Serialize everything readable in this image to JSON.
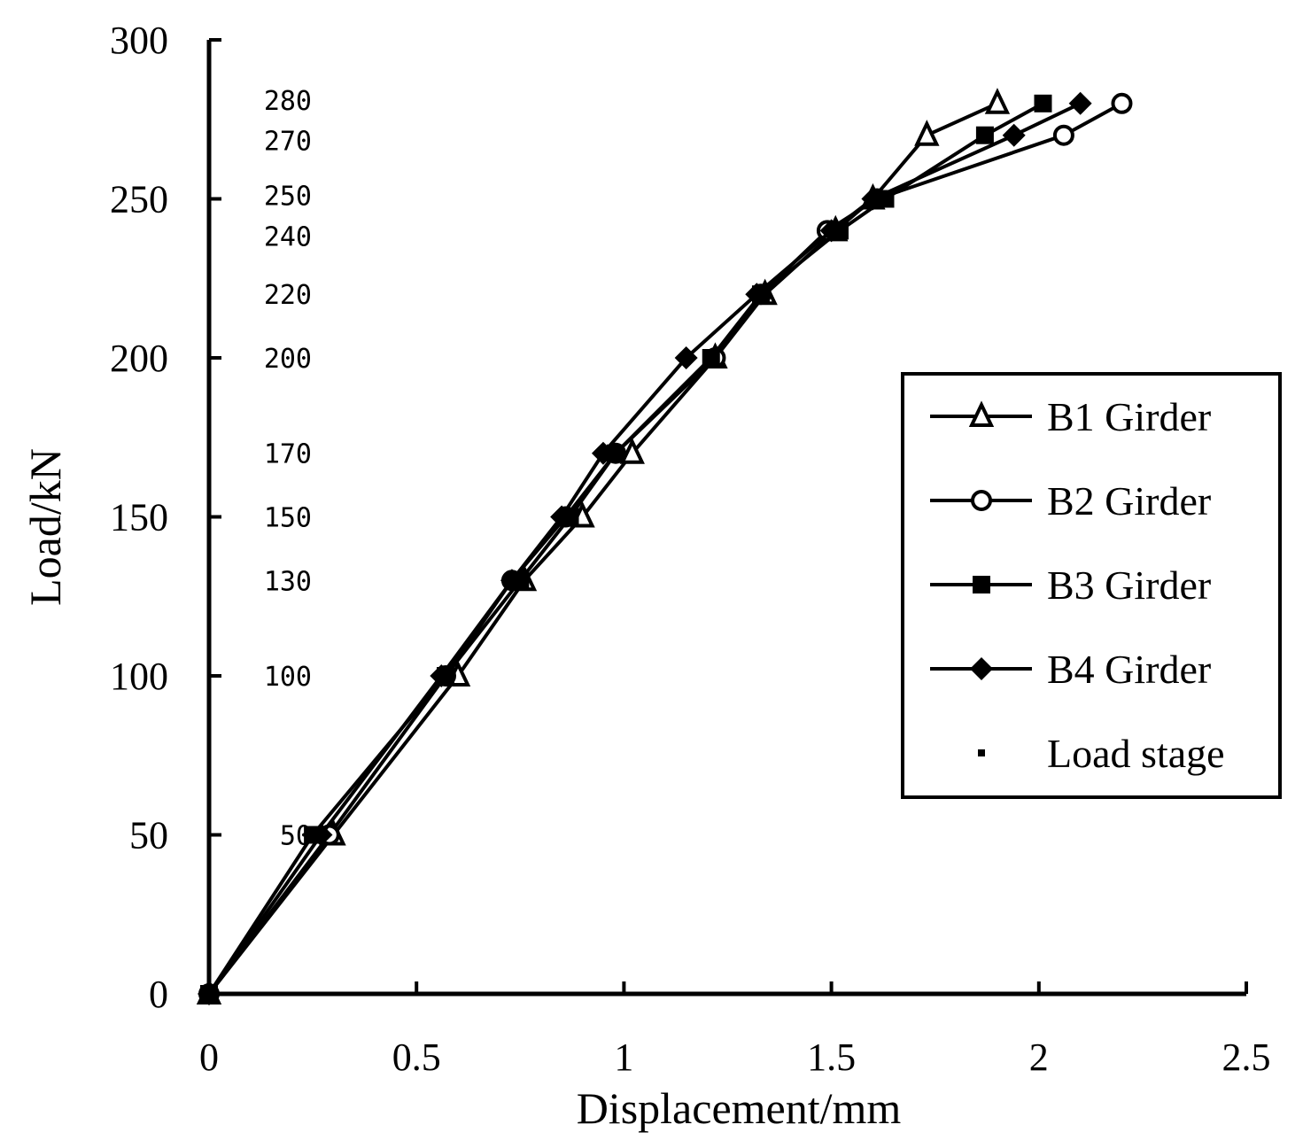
{
  "chart_data": {
    "type": "line",
    "xlabel": "Displacement/mm",
    "ylabel": "Load/kN",
    "xlim": [
      0,
      2.5
    ],
    "ylim": [
      0,
      300
    ],
    "xticks": [
      0,
      0.5,
      1,
      1.5,
      2,
      2.5
    ],
    "xtick_labels": [
      "0",
      "0.5",
      "1",
      "1.5",
      "2",
      "2.5"
    ],
    "yticks": [
      0,
      50,
      100,
      150,
      200,
      250,
      300
    ],
    "ytick_labels": [
      "0",
      "50",
      "100",
      "150",
      "200",
      "250",
      "300"
    ],
    "grid": false,
    "legend_position": "right",
    "load_stage_labels": [
      "280",
      "270",
      "250",
      "240",
      "220",
      "200",
      "170",
      "150",
      "130",
      "100",
      "50"
    ],
    "series": [
      {
        "name": "B1 Girder",
        "marker": "triangle-open",
        "points": [
          [
            0,
            0
          ],
          [
            0.3,
            50
          ],
          [
            0.6,
            100
          ],
          [
            0.76,
            130
          ],
          [
            0.9,
            150
          ],
          [
            1.02,
            170
          ],
          [
            1.22,
            200
          ],
          [
            1.34,
            220
          ],
          [
            1.51,
            240
          ],
          [
            1.6,
            250
          ],
          [
            1.73,
            270
          ],
          [
            1.9,
            280
          ]
        ]
      },
      {
        "name": "B2 Girder",
        "marker": "circle-open",
        "points": [
          [
            0,
            0
          ],
          [
            0.29,
            50
          ],
          [
            0.57,
            100
          ],
          [
            0.73,
            130
          ],
          [
            0.86,
            150
          ],
          [
            0.98,
            170
          ],
          [
            1.22,
            200
          ],
          [
            1.33,
            220
          ],
          [
            1.49,
            240
          ],
          [
            1.61,
            250
          ],
          [
            2.06,
            270
          ],
          [
            2.2,
            280
          ]
        ]
      },
      {
        "name": "B3 Girder",
        "marker": "square-filled",
        "points": [
          [
            0,
            0
          ],
          [
            0.25,
            50
          ],
          [
            0.57,
            100
          ],
          [
            0.75,
            130
          ],
          [
            0.87,
            150
          ],
          [
            0.98,
            170
          ],
          [
            1.21,
            200
          ],
          [
            1.33,
            220
          ],
          [
            1.52,
            240
          ],
          [
            1.63,
            250
          ],
          [
            1.87,
            270
          ],
          [
            2.01,
            280
          ]
        ]
      },
      {
        "name": "B4 Girder",
        "marker": "diamond-filled",
        "points": [
          [
            0,
            0
          ],
          [
            0.27,
            50
          ],
          [
            0.56,
            100
          ],
          [
            0.73,
            130
          ],
          [
            0.85,
            150
          ],
          [
            0.95,
            170
          ],
          [
            1.15,
            200
          ],
          [
            1.32,
            220
          ],
          [
            1.5,
            240
          ],
          [
            1.6,
            250
          ],
          [
            1.94,
            270
          ],
          [
            2.1,
            280
          ]
        ]
      }
    ],
    "legend": [
      {
        "label": "B1 Girder",
        "marker": "triangle-open"
      },
      {
        "label": "B2 Girder",
        "marker": "circle-open"
      },
      {
        "label": "B3 Girder",
        "marker": "square-filled"
      },
      {
        "label": "B4 Girder",
        "marker": "diamond-filled"
      },
      {
        "label": "Load stage",
        "marker": "dot"
      }
    ],
    "colors": {
      "line": "#000000",
      "background": "#ffffff"
    }
  }
}
